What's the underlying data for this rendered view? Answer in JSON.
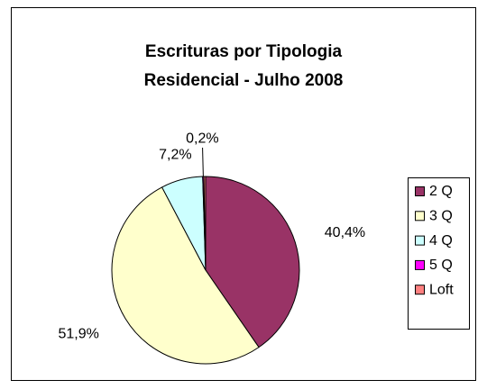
{
  "chart_data": {
    "type": "pie",
    "title": [
      "Escrituras por Tipologia",
      "Residencial - Julho 2008"
    ],
    "categories": [
      "2 Q",
      "3 Q",
      "4 Q",
      "5 Q",
      "Loft"
    ],
    "values": [
      40.4,
      51.9,
      7.2,
      0.2,
      0.3
    ],
    "value_labels": [
      "40,4%",
      "51,9%",
      "7,2%",
      "0,2%",
      null
    ],
    "colors": [
      "#993366",
      "#FFFFCC",
      "#CCFFFF",
      "#FF00FF",
      "#FF8080"
    ],
    "legend": "right"
  }
}
